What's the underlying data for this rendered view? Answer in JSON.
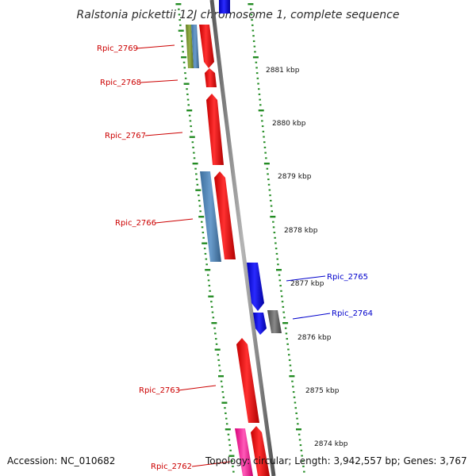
{
  "title": "Ralstonia pickettii 12J chromosome 1, complete sequence",
  "footer": {
    "accession": "Accession: NC_010682",
    "topology": "Topology: circular; Length: 3,942,557 bp; Genes: 3,767"
  },
  "colors": {
    "label_red": "#cc0000",
    "label_blue": "#0000cc",
    "tick_green": "#228b22",
    "backbone": "#8a8a8a"
  },
  "scale_labels": [
    "2881 kbp",
    "2880 kbp",
    "2879 kbp",
    "2878 kbp",
    "2877 kbp",
    "2876 kbp",
    "2875 kbp",
    "2874 kbp"
  ],
  "genes": [
    {
      "label": "Rpic_2769",
      "color": "red",
      "strand": "reverse"
    },
    {
      "label": "Rpic_2768",
      "color": "red",
      "strand": "reverse"
    },
    {
      "label": "Rpic_2767",
      "color": "red",
      "strand": "reverse"
    },
    {
      "label": "Rpic_2766",
      "color": "red",
      "strand": "reverse"
    },
    {
      "label": "Rpic_2765",
      "color": "blue",
      "strand": "forward"
    },
    {
      "label": "Rpic_2764",
      "color": "blue",
      "strand": "forward"
    },
    {
      "label": "Rpic_2763",
      "color": "red",
      "strand": "reverse"
    },
    {
      "label": "Rpic_2762",
      "color": "red",
      "strand": "reverse"
    }
  ]
}
